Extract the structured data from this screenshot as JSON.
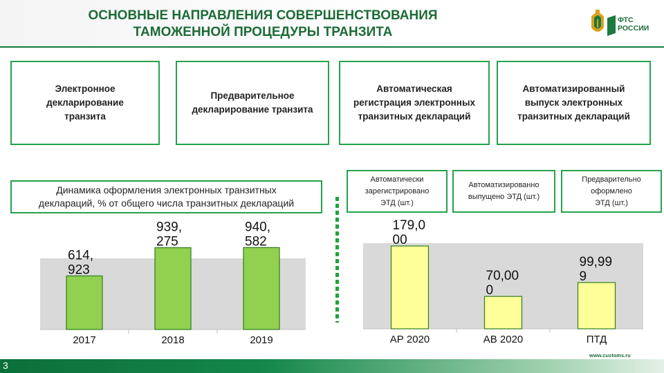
{
  "header": {
    "title_line1": "ОСНОВНЫЕ НАПРАВЛЕНИЯ СОВЕРШЕНСТВОВАНИЯ",
    "title_line2": "ТАМОЖЕННОЙ ПРОЦЕДУРЫ ТРАНЗИТА",
    "logo_line1": "ФТС",
    "logo_line2": "РОССИИ"
  },
  "directions": [
    {
      "label": "Электронное\nдекларирование\nтранзита"
    },
    {
      "label": "Предварительное\nдекларирование транзита"
    },
    {
      "label": "Автоматическая\nрегистрация электронных\nтранзитных деклараций"
    },
    {
      "label": "Автоматизированный\nвыпуск электронных\nтранзитных деклараций"
    }
  ],
  "left_caption": "Динамика оформления электронных транзитных\nдеклараций, % от общего числа транзитных деклараций",
  "right_captions": [
    {
      "label": "Автоматически\nзарегистрировано\nЭТД (шт.)"
    },
    {
      "label": "Автоматизированно\nвыпущено ЭТД (шт.)"
    },
    {
      "label": "Предварительно\nоформлено\nЭТД (шт.)"
    }
  ],
  "chart_data": [
    {
      "type": "bar",
      "categories": [
        "2017",
        "2018",
        "2019"
      ],
      "values": [
        614923,
        939275,
        940582
      ],
      "data_labels": [
        [
          "614,",
          "923"
        ],
        [
          "939,",
          "275"
        ],
        [
          "940,",
          "582"
        ]
      ],
      "ylim": [
        0,
        1150000
      ],
      "grid": false,
      "colors": {
        "bar": "#92d050",
        "bar_border": "#2f7d1c",
        "plot_bg": "#d9d9d9"
      }
    },
    {
      "type": "bar",
      "categories": [
        "АР 2020",
        "АВ 2020",
        "ПТД"
      ],
      "values": [
        179000,
        70000,
        99999
      ],
      "data_labels": [
        [
          "179,0",
          "00"
        ],
        [
          "70,00",
          "0"
        ],
        [
          "99,99",
          "9"
        ]
      ],
      "ylim": [
        0,
        215000
      ],
      "grid": false,
      "colors": {
        "bar": "#ffff99",
        "bar_border": "#2f7d1c",
        "plot_bg": "#d9d9d9"
      }
    }
  ],
  "footer": {
    "page_number": "3",
    "website": "www.customs.ru"
  }
}
